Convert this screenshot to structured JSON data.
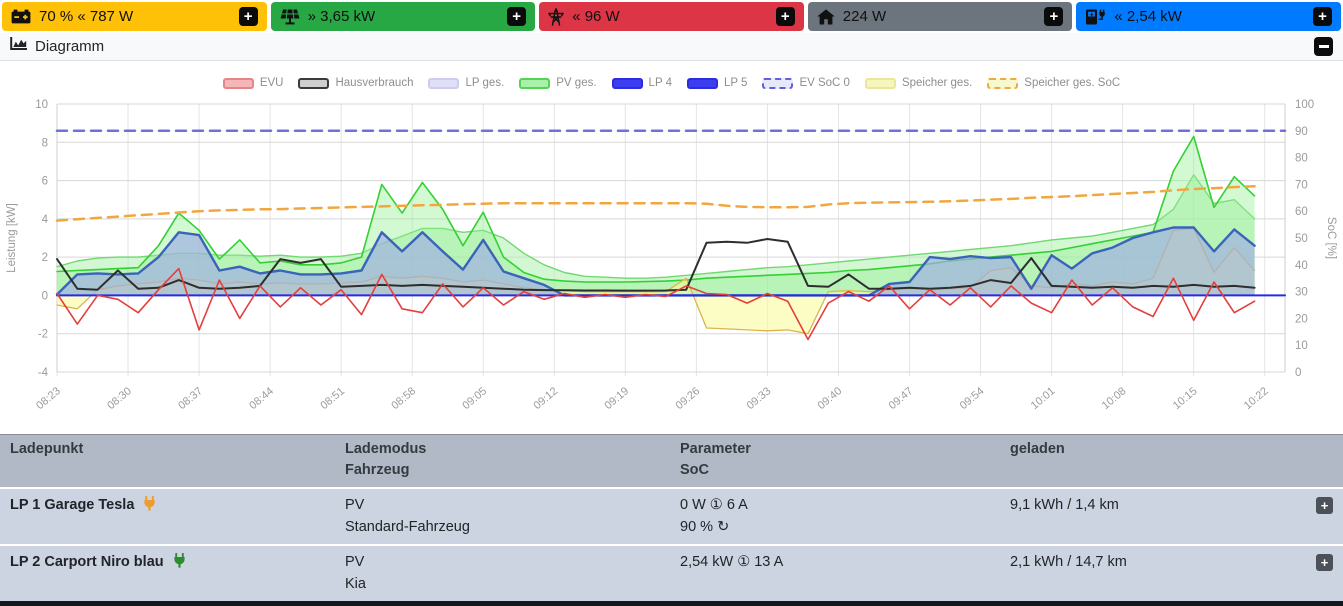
{
  "controls": {
    "expand": "+"
  },
  "status_boxes": [
    {
      "id": "speicher",
      "icon": "car-battery-icon",
      "text": "70 % « 787 W",
      "color": "#ffc107"
    },
    {
      "id": "pv",
      "icon": "solar-panel-icon",
      "text": "» 3,65 kW",
      "color": "#28a745"
    },
    {
      "id": "evu",
      "icon": "power-pylon-icon",
      "text": "« 96 W",
      "color": "#dc3545"
    },
    {
      "id": "haus",
      "icon": "home-icon",
      "text": "224 W",
      "color": "#6c757d"
    },
    {
      "id": "ladeleistung",
      "icon": "charging-station-icon",
      "text": "« 2,54 kW",
      "color": "#007bff"
    }
  ],
  "diagram": {
    "title": "Diagramm"
  },
  "chart_data": {
    "type": "line",
    "title": "",
    "legend_position": "top",
    "grid": true,
    "x_minutes": [
      0,
      2,
      4,
      6,
      8,
      10,
      12,
      14,
      16,
      18,
      20,
      22,
      24,
      26,
      28,
      30,
      32,
      34,
      36,
      38,
      40,
      42,
      44,
      46,
      48,
      50,
      52,
      54,
      56,
      58,
      60,
      62,
      64,
      66,
      68,
      70,
      72,
      74,
      76,
      78,
      80,
      82,
      84,
      86,
      88,
      90,
      92,
      94,
      96,
      98,
      100,
      102,
      104,
      106,
      108,
      110,
      112,
      114,
      116,
      118
    ],
    "x_tick_labels": [
      "08:23",
      "08:30",
      "08:37",
      "08:44",
      "08:51",
      "08:58",
      "09:05",
      "09:12",
      "09:19",
      "09:26",
      "09:33",
      "09:40",
      "09:47",
      "09:54",
      "10:01",
      "10:08",
      "10:15",
      "10:22"
    ],
    "x_tick_step_minutes": 7,
    "x_range_minutes": [
      0,
      121
    ],
    "y_left": {
      "label": "Leistung [kW]",
      "min": -4,
      "max": 10,
      "ticks": [
        10,
        8,
        6,
        4,
        2,
        0,
        -2,
        -4
      ]
    },
    "y_right": {
      "label": "SoC [%]",
      "min": 0,
      "max": 100,
      "ticks": [
        100,
        90,
        80,
        70,
        60,
        50,
        40,
        30,
        20,
        10,
        0
      ]
    },
    "legend": [
      {
        "label": "EVU",
        "fill": "#f4b6b6",
        "border": "#e58585",
        "dashed": false
      },
      {
        "label": "Hausverbrauch",
        "fill": "#cfcfcf",
        "border": "#3a3a3a",
        "dashed": false
      },
      {
        "label": "LP ges.",
        "fill": "#dfdff8",
        "border": "#ccccf0",
        "dashed": false
      },
      {
        "label": "PV ges.",
        "fill": "#a9f1a9",
        "border": "#54d354",
        "dashed": false
      },
      {
        "label": "LP 4",
        "fill": "#3c3cf0",
        "border": "#2d2de0",
        "dashed": false
      },
      {
        "label": "LP 5",
        "fill": "#3c3cf0",
        "border": "#2d2de0",
        "dashed": false
      },
      {
        "label": "EV SoC 0",
        "fill": "#e8e8fb",
        "border": "#6060d8",
        "dashed": true
      },
      {
        "label": "Speicher ges.",
        "fill": "#f6f6bc",
        "border": "#e8e89c",
        "dashed": false
      },
      {
        "label": "Speicher ges. SoC",
        "fill": "#f8f8cf",
        "border": "#f0a840",
        "dashed": true
      }
    ],
    "series": [
      {
        "name": "PV ges.",
        "style": "area",
        "color": "#72d872",
        "fill": "rgba(173,240,173,0.55)",
        "width": 1.4,
        "values": [
          1.5,
          1.8,
          1.95,
          2.0,
          2.0,
          2.1,
          2.2,
          2.2,
          2.1,
          2.1,
          2.05,
          2.1,
          2.0,
          2.0,
          2.05,
          2.2,
          2.7,
          3.1,
          3.5,
          3.5,
          3.3,
          3.4,
          3.0,
          2.2,
          1.6,
          1.2,
          1.0,
          0.95,
          0.9,
          0.9,
          0.95,
          1.05,
          1.15,
          1.25,
          1.35,
          1.45,
          1.5,
          1.6,
          1.7,
          1.8,
          1.9,
          2.0,
          2.1,
          2.2,
          2.3,
          2.4,
          2.5,
          2.6,
          2.75,
          2.9,
          3.0,
          3.1,
          3.3,
          3.5,
          3.7,
          4.5,
          6.3,
          4.8,
          5.0,
          4.0
        ]
      },
      {
        "name": "PV ges.",
        "style": "area",
        "color": "#34d034",
        "fill": "rgba(146,240,146,0.40)",
        "width": 1.6,
        "values": [
          1.25,
          1.3,
          1.35,
          1.4,
          1.45,
          2.6,
          4.3,
          3.4,
          1.9,
          2.9,
          1.7,
          1.8,
          1.6,
          1.6,
          1.7,
          2.0,
          5.8,
          4.3,
          5.9,
          4.5,
          2.6,
          4.35,
          2.0,
          1.2,
          0.85,
          0.75,
          0.7,
          0.7,
          0.7,
          0.72,
          0.75,
          0.8,
          0.9,
          0.95,
          1.0,
          1.05,
          1.1,
          1.15,
          1.2,
          1.3,
          1.35,
          1.45,
          1.55,
          1.65,
          1.8,
          1.9,
          2.0,
          2.1,
          2.2,
          2.3,
          2.5,
          2.7,
          2.9,
          3.1,
          3.3,
          6.5,
          8.3,
          4.6,
          6.2,
          5.2
        ]
      },
      {
        "name": "Speicher ges.",
        "style": "area",
        "color": "#dcb54d",
        "fill": "rgba(250,250,150,0.55)",
        "width": 1.3,
        "values": [
          -0.5,
          -0.7,
          0.3,
          0.5,
          0.6,
          0.7,
          0.9,
          0.8,
          0.6,
          0.7,
          0.6,
          0.65,
          0.6,
          0.6,
          0.65,
          0.7,
          1.0,
          0.9,
          1.0,
          0.9,
          0.7,
          0.8,
          0.6,
          0.4,
          0.3,
          0.25,
          0.2,
          0.2,
          0.2,
          0.2,
          0.2,
          0.9,
          -1.7,
          -1.75,
          -1.8,
          -1.85,
          -1.8,
          -2.0,
          0.2,
          0.25,
          0.2,
          0.3,
          0.35,
          0.3,
          0.35,
          0.4,
          1.3,
          1.45,
          0.5,
          0.4,
          0.6,
          0.5,
          0.7,
          0.6,
          0.9,
          3.4,
          3.5,
          1.2,
          2.5,
          1.3
        ]
      },
      {
        "name": "LP ges.",
        "style": "area",
        "color": "#bcbcea",
        "fill": "rgba(215,215,245,0.55)",
        "width": 1.2,
        "values": [
          0.05,
          1.1,
          1.15,
          1.1,
          1.15,
          2.0,
          3.3,
          3.15,
          1.3,
          1.5,
          1.15,
          1.3,
          1.1,
          1.1,
          1.15,
          1.3,
          3.3,
          2.3,
          3.3,
          2.3,
          1.35,
          2.9,
          1.25,
          0.9,
          0.55,
          0,
          0,
          0,
          0,
          0,
          0,
          0,
          0,
          0,
          0,
          0,
          0,
          0,
          0,
          0,
          0,
          0.6,
          0.7,
          2.0,
          1.9,
          2.05,
          1.95,
          2.0,
          0.35,
          2.1,
          1.4,
          2.2,
          2.5,
          3.0,
          3.3,
          3.55,
          3.55,
          2.3,
          3.45,
          2.6
        ]
      },
      {
        "name": "LP 5",
        "style": "area",
        "color": "#3a64b8",
        "fill": "rgba(80,120,200,0.28)",
        "width": 2.4,
        "values": [
          0.05,
          1.1,
          1.15,
          1.1,
          1.15,
          2.0,
          3.3,
          3.15,
          1.3,
          1.5,
          1.15,
          1.3,
          1.1,
          1.1,
          1.15,
          1.3,
          3.3,
          2.3,
          3.3,
          2.3,
          1.35,
          2.9,
          1.25,
          0.9,
          0.55,
          0,
          0,
          0,
          0,
          0,
          0,
          0,
          0,
          0,
          0,
          0,
          0,
          0,
          0,
          0,
          0,
          0.6,
          0.7,
          2.0,
          1.9,
          2.05,
          1.95,
          2.0,
          0.35,
          2.1,
          1.4,
          2.2,
          2.5,
          3.0,
          3.3,
          3.55,
          3.55,
          2.3,
          3.45,
          2.6
        ]
      },
      {
        "name": "LP 4",
        "style": "line",
        "color": "#2a2ae0",
        "width": 2.0,
        "x": [
          0,
          121
        ],
        "values": [
          0,
          0
        ]
      },
      {
        "name": "Hausverbrauch",
        "style": "line",
        "color": "#2e2e2e",
        "width": 2.0,
        "values": [
          1.9,
          0.35,
          0.3,
          1.3,
          0.35,
          0.4,
          0.8,
          0.4,
          0.35,
          0.4,
          0.5,
          1.9,
          1.7,
          1.9,
          0.45,
          0.5,
          0.55,
          0.5,
          0.55,
          0.5,
          0.45,
          0.4,
          0.35,
          0.3,
          0.28,
          0.27,
          0.26,
          0.26,
          0.25,
          0.25,
          0.26,
          0.3,
          2.75,
          2.8,
          2.75,
          2.95,
          2.8,
          0.5,
          0.45,
          1.1,
          0.35,
          0.35,
          0.4,
          0.35,
          0.4,
          0.5,
          0.8,
          0.65,
          1.95,
          0.5,
          0.45,
          0.4,
          0.45,
          0.4,
          0.5,
          0.45,
          0.55,
          0.45,
          0.5,
          0.4
        ]
      },
      {
        "name": "EVU",
        "style": "line",
        "color": "#e53e3e",
        "width": 1.6,
        "values": [
          0.1,
          -1.5,
          0.0,
          -0.2,
          -0.9,
          0.3,
          1.4,
          -1.8,
          0.8,
          -1.2,
          0.5,
          -0.6,
          0.4,
          -0.5,
          0.3,
          -1.0,
          1.1,
          -0.7,
          -0.9,
          0.6,
          -0.6,
          0.4,
          -0.5,
          0.2,
          -0.2,
          0.1,
          -0.1,
          0.05,
          -0.1,
          0.05,
          -0.05,
          0.5,
          0.1,
          0.05,
          -0.4,
          0.1,
          -0.3,
          -2.3,
          -0.4,
          0.2,
          -0.3,
          0.5,
          -0.7,
          0.3,
          -0.5,
          0.4,
          -0.6,
          0.5,
          -0.4,
          -0.9,
          0.8,
          -0.5,
          0.4,
          -0.6,
          -1.1,
          0.9,
          -1.3,
          0.7,
          -0.9,
          -0.3
        ]
      },
      {
        "name": "EV SoC 0",
        "style": "line",
        "axis": "right",
        "color": "#7070d8",
        "width": 2.5,
        "dash": "10 7",
        "x": [
          0,
          121
        ],
        "values": [
          90,
          90
        ]
      },
      {
        "name": "Speicher ges. SoC",
        "style": "line",
        "axis": "right",
        "color": "#f1a73e",
        "width": 2.5,
        "dash": "10 7",
        "values": [
          56.5,
          57,
          57.5,
          58,
          58.5,
          59,
          59.5,
          60,
          60.3,
          60.5,
          60.7,
          60.8,
          61,
          61.2,
          61.4,
          61.6,
          61.8,
          62,
          62.2,
          62.4,
          62.6,
          62.8,
          63,
          63,
          63,
          63,
          63,
          63,
          63,
          63,
          63,
          63,
          62.8,
          62,
          61.6,
          61.5,
          61.5,
          61.6,
          62.5,
          63,
          63.2,
          63.3,
          63.4,
          63.5,
          63.7,
          64,
          64.3,
          64.6,
          65,
          65.3,
          65.6,
          66,
          66.4,
          66.8,
          67.2,
          67.8,
          68.3,
          68.6,
          69,
          69.3
        ]
      }
    ]
  },
  "table": {
    "headers": {
      "col1": "Ladepunkt",
      "col2a": "Lademodus",
      "col2b": "Fahrzeug",
      "col3a": "Parameter",
      "col3b": "SoC",
      "col4": "geladen"
    },
    "rows": [
      {
        "name": "LP 1 Garage Tesla",
        "plug_color": "#ef9b2d",
        "mode": "PV",
        "vehicle": "Standard-Fahrzeug",
        "parameter": "0 W ① 6 A",
        "soc": "90 %",
        "soc_refresh": "↻",
        "charged": "9,1 kWh / 1,4 km"
      },
      {
        "name": "LP 2 Carport Niro blau",
        "plug_color": "#2e8b2e",
        "mode": "PV",
        "vehicle": "Kia",
        "parameter": "2,54 kW ① 13 A",
        "soc": "",
        "soc_refresh": "",
        "charged": "2,1 kWh / 14,7 km"
      }
    ]
  }
}
